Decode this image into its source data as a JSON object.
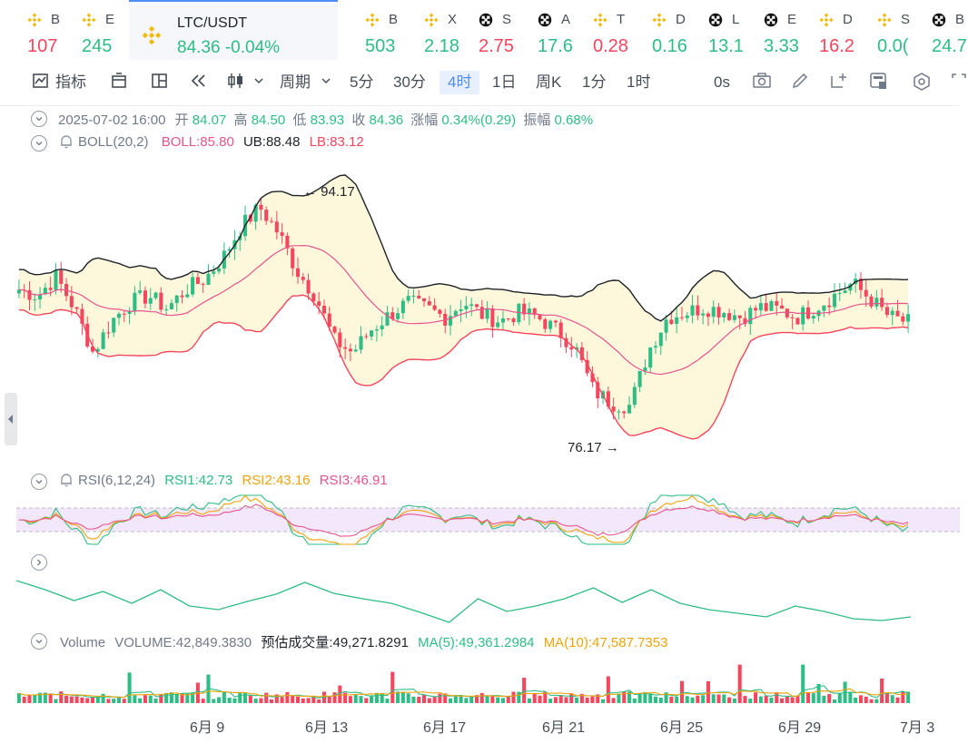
{
  "ticker": [
    {
      "symbol": "B",
      "value": "107",
      "dir": "down",
      "icon": "binance-icon"
    },
    {
      "symbol": "E",
      "value": "245",
      "dir": "up",
      "icon": "binance-icon"
    },
    {
      "symbol": "LTC/USDT",
      "value": "84.36 -0.04%",
      "dir": "up",
      "icon": "binance-icon",
      "active": true
    },
    {
      "symbol": "B",
      "value": "503",
      "dir": "up",
      "icon": "binance-icon"
    },
    {
      "symbol": "X",
      "value": "2.18",
      "dir": "up",
      "icon": "binance-icon"
    },
    {
      "symbol": "S",
      "value": "2.75",
      "dir": "down",
      "icon": "checker-icon"
    },
    {
      "symbol": "A",
      "value": "17.6",
      "dir": "up",
      "icon": "checker-icon"
    },
    {
      "symbol": "T",
      "value": "0.28",
      "dir": "down",
      "icon": "binance-icon"
    },
    {
      "symbol": "D",
      "value": "0.16",
      "dir": "up",
      "icon": "binance-icon"
    },
    {
      "symbol": "L",
      "value": "13.1",
      "dir": "up",
      "icon": "checker-icon"
    },
    {
      "symbol": "E",
      "value": "3.33",
      "dir": "up",
      "icon": "checker-icon"
    },
    {
      "symbol": "D",
      "value": "16.2",
      "dir": "down",
      "icon": "binance-icon"
    },
    {
      "symbol": "S",
      "value": "0.0(",
      "dir": "up",
      "icon": "binance-icon"
    },
    {
      "symbol": "B",
      "value": "24.7",
      "dir": "up",
      "icon": "checker-icon"
    }
  ],
  "toolbar": {
    "indicators": "指标",
    "period": "周期",
    "intervals": [
      "5分",
      "30分",
      "4时",
      "1日",
      "周K",
      "1分",
      "1时"
    ],
    "selected_interval": "4时",
    "countdown": "0s"
  },
  "ohlc": {
    "datetime": "2025-07-02 16:00",
    "open_label": "开",
    "open": "84.07",
    "high_label": "高",
    "high": "84.50",
    "low_label": "低",
    "low": "83.93",
    "close_label": "收",
    "close": "84.36",
    "change_label": "涨幅",
    "change": "0.34%(0.29)",
    "amp_label": "振幅",
    "amp": "0.68%"
  },
  "boll": {
    "label": "BOLL(20,2)",
    "boll": "BOLL:85.80",
    "ub": "UB:88.48",
    "lb": "LB:83.12"
  },
  "annotations": {
    "high": "94.17",
    "low": "76.17"
  },
  "rsi": {
    "label": "RSI(6,12,24)",
    "rsi1": "RSI1:42.73",
    "rsi2": "RSI2:43.16",
    "rsi3": "RSI3:46.91"
  },
  "volume": {
    "label": "Volume",
    "vol": "VOLUME:42,849.3830",
    "est": "预估成交量:49,271.8291",
    "ma5": "MA(5):49,361.2984",
    "ma10": "MA(10):47,587.7353"
  },
  "xaxis": [
    "6月 9",
    "6月 13",
    "6月 17",
    "6月 21",
    "6月 25",
    "6月 29",
    "7月 3"
  ],
  "colors": {
    "up": "#2ebd85",
    "down": "#f6465d",
    "accent": "#4e8cf6",
    "boll_mid": "#e8548c",
    "rsi1": "#2ebd85",
    "rsi2": "#f0a30a",
    "rsi3": "#e8548c"
  },
  "chart_data": {
    "type": "candlestick",
    "x": [
      "2025-06-05",
      "2025-07-03"
    ],
    "close_path": [
      87,
      86.5,
      88,
      85.5,
      82,
      84.5,
      86,
      86.5,
      85.5,
      87,
      87.8,
      89.5,
      92,
      93.5,
      91.5,
      88.5,
      86.5,
      83,
      82,
      83.8,
      85,
      86,
      85.5,
      84.8,
      86,
      85,
      84.5,
      85.2,
      84.8,
      83.8,
      82.5,
      79,
      78,
      77.8,
      82.2,
      84.8,
      85.2,
      85.6,
      85.3,
      84.8,
      85.6,
      85.4,
      84.8,
      85.6,
      86.5,
      87.5,
      86.2,
      84.8,
      84.4
    ],
    "high_annotation": 94.17,
    "low_annotation": 76.17
  }
}
